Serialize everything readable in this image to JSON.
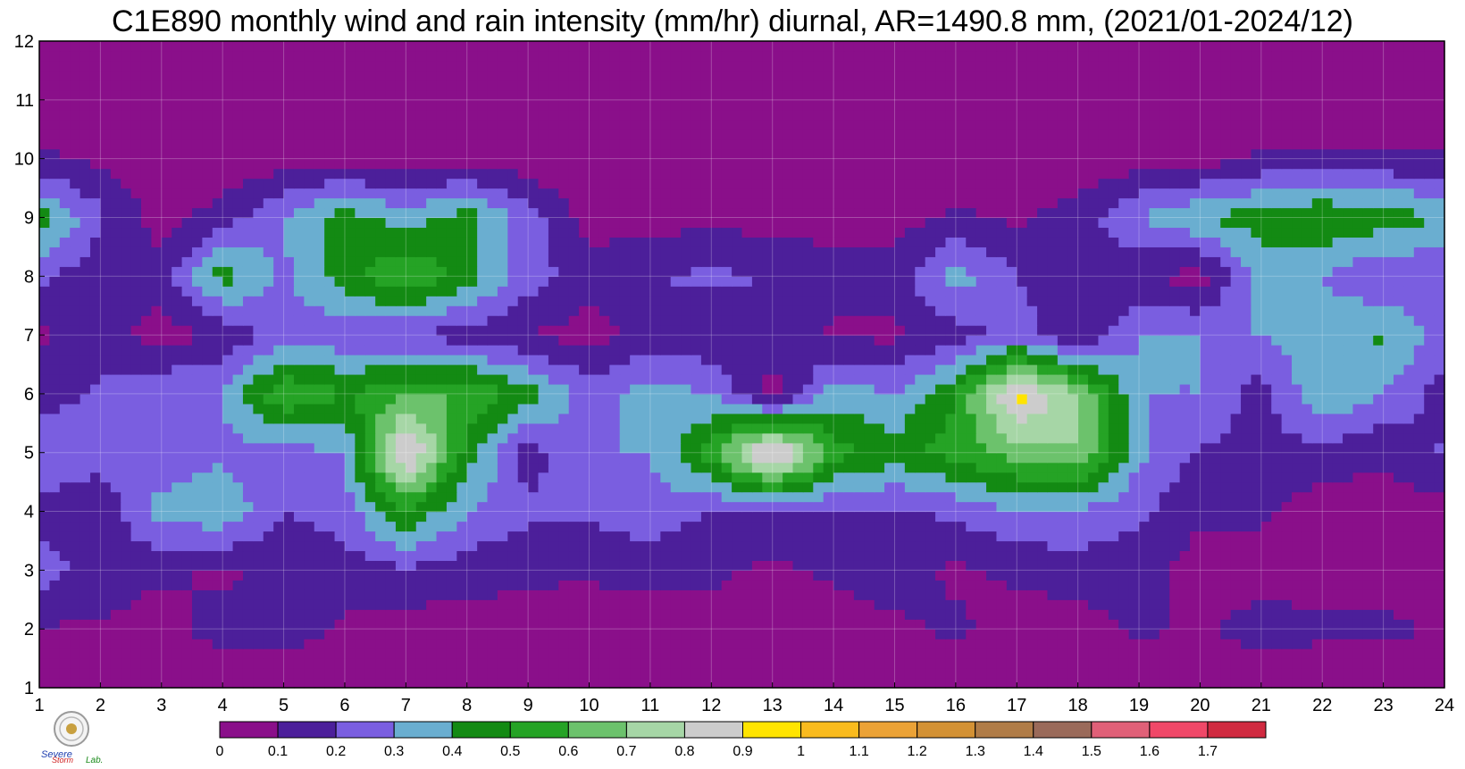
{
  "title": "C1E890 monthly wind and rain intensity (mm/hr) diurnal, AR=1490.8 mm, (2021/01-2024/12)",
  "logo": {
    "text_top": "Severe",
    "text_bottom": "Storm",
    "text_lab": "Lab."
  },
  "chart_data": {
    "type": "heatmap",
    "title": "C1E890 monthly wind and rain intensity (mm/hr) diurnal, AR=1490.8 mm, (2021/01-2024/12)",
    "xlabel": "",
    "ylabel": "",
    "xlim": [
      1,
      24
    ],
    "ylim": [
      1,
      12
    ],
    "x_ticks": [
      "1",
      "2",
      "3",
      "4",
      "5",
      "6",
      "7",
      "8",
      "9",
      "10",
      "11",
      "12",
      "13",
      "14",
      "15",
      "16",
      "17",
      "18",
      "19",
      "20",
      "21",
      "22",
      "23",
      "24"
    ],
    "y_ticks": [
      "1",
      "2",
      "3",
      "4",
      "5",
      "6",
      "7",
      "8",
      "9",
      "10",
      "11",
      "12"
    ],
    "grid": true,
    "colorbar": {
      "placement": "bottom",
      "levels": [
        "0",
        "0.1",
        "0.2",
        "0.3",
        "0.4",
        "0.5",
        "0.6",
        "0.7",
        "0.8",
        "0.9",
        "1",
        "1.1",
        "1.2",
        "1.3",
        "1.4",
        "1.5",
        "1.6",
        "1.7"
      ],
      "colors": [
        "#8a0f8a",
        "#4c1f9a",
        "#7a5ee0",
        "#6aaed0",
        "#138a13",
        "#25a325",
        "#6cc26c",
        "#a6d6a6",
        "#cccccc",
        "#ffe400",
        "#f9bb1e",
        "#eba236",
        "#d39134",
        "#b07c47",
        "#9a6a5a",
        "#e06078",
        "#f04868",
        "#d02a40"
      ]
    },
    "x": [
      1,
      2,
      3,
      4,
      5,
      6,
      7,
      8,
      9,
      10,
      11,
      12,
      13,
      14,
      15,
      16,
      17,
      18,
      19,
      20,
      21,
      22,
      23,
      24
    ],
    "y": [
      1,
      2,
      3,
      4,
      5,
      6,
      7,
      8,
      9,
      10,
      11,
      12
    ],
    "z": [
      [
        0.02,
        0.02,
        0.02,
        0.02,
        0.02,
        0.02,
        0.02,
        0.02,
        0.02,
        0.02,
        0.02,
        0.02,
        0.02,
        0.02,
        0.02,
        0.02,
        0.02,
        0.02,
        0.02,
        0.02,
        0.02,
        0.02,
        0.02,
        0.02
      ],
      [
        0.09,
        0.09,
        0.05,
        0.15,
        0.15,
        0.08,
        0.05,
        0.05,
        0.05,
        0.03,
        0.03,
        0.05,
        0.05,
        0.05,
        0.08,
        0.12,
        0.05,
        0.05,
        0.12,
        0.08,
        0.15,
        0.12,
        0.12,
        0.09
      ],
      [
        0.25,
        0.15,
        0.12,
        0.08,
        0.12,
        0.15,
        0.18,
        0.15,
        0.12,
        0.12,
        0.15,
        0.12,
        0.08,
        0.12,
        0.15,
        0.08,
        0.12,
        0.15,
        0.15,
        0.05,
        0.05,
        0.05,
        0.05,
        0.05
      ],
      [
        0.15,
        0.12,
        0.35,
        0.38,
        0.2,
        0.25,
        0.5,
        0.3,
        0.22,
        0.22,
        0.25,
        0.2,
        0.18,
        0.2,
        0.18,
        0.22,
        0.3,
        0.28,
        0.22,
        0.12,
        0.12,
        0.05,
        0.05,
        0.05
      ],
      [
        0.3,
        0.25,
        0.22,
        0.28,
        0.25,
        0.3,
        0.95,
        0.45,
        0.15,
        0.3,
        0.3,
        0.55,
        1.0,
        0.55,
        0.45,
        0.55,
        0.65,
        0.7,
        0.32,
        0.18,
        0.18,
        0.15,
        0.12,
        0.22
      ],
      [
        0.15,
        0.22,
        0.3,
        0.3,
        0.6,
        0.5,
        0.6,
        0.6,
        0.45,
        0.25,
        0.35,
        0.3,
        0.05,
        0.35,
        0.3,
        0.5,
        0.95,
        0.7,
        0.3,
        0.3,
        0.15,
        0.4,
        0.3,
        0.15
      ],
      [
        0.08,
        0.15,
        0.05,
        0.12,
        0.25,
        0.22,
        0.2,
        0.15,
        0.1,
        0.05,
        0.15,
        0.12,
        0.15,
        0.08,
        0.08,
        0.15,
        0.25,
        0.1,
        0.3,
        0.3,
        0.3,
        0.35,
        0.42,
        0.25
      ],
      [
        0.22,
        0.12,
        0.15,
        0.45,
        0.28,
        0.45,
        0.6,
        0.45,
        0.25,
        0.15,
        0.2,
        0.22,
        0.2,
        0.15,
        0.15,
        0.35,
        0.2,
        0.15,
        0.12,
        0.05,
        0.35,
        0.3,
        0.2,
        0.22
      ],
      [
        0.45,
        0.22,
        0.05,
        0.15,
        0.3,
        0.45,
        0.35,
        0.45,
        0.25,
        0.05,
        0.05,
        0.08,
        0.05,
        0.05,
        0.05,
        0.12,
        0.08,
        0.15,
        0.3,
        0.4,
        0.45,
        0.5,
        0.45,
        0.4
      ],
      [
        0.12,
        0.08,
        0.02,
        0.02,
        0.05,
        0.05,
        0.05,
        0.05,
        0.03,
        0.02,
        0.02,
        0.02,
        0.02,
        0.02,
        0.02,
        0.02,
        0.02,
        0.02,
        0.05,
        0.05,
        0.12,
        0.12,
        0.12,
        0.12
      ],
      [
        0.02,
        0.02,
        0.02,
        0.02,
        0.02,
        0.02,
        0.02,
        0.02,
        0.02,
        0.02,
        0.02,
        0.02,
        0.02,
        0.02,
        0.02,
        0.02,
        0.02,
        0.02,
        0.02,
        0.02,
        0.02,
        0.02,
        0.02,
        0.02
      ],
      [
        0.02,
        0.02,
        0.02,
        0.02,
        0.02,
        0.02,
        0.02,
        0.02,
        0.02,
        0.02,
        0.02,
        0.02,
        0.02,
        0.02,
        0.02,
        0.02,
        0.02,
        0.02,
        0.02,
        0.02,
        0.02,
        0.02,
        0.02,
        0.02
      ]
    ]
  }
}
